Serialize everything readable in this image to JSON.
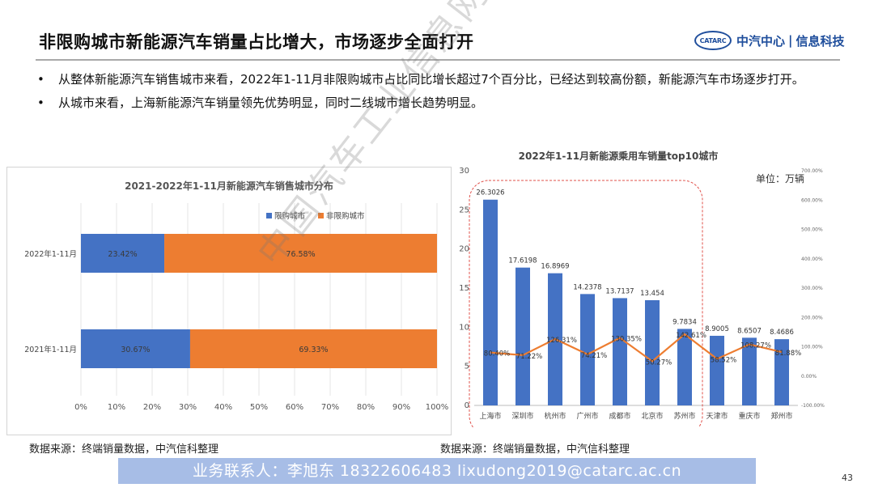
{
  "header": {
    "title": "非限购城市新能源汽车销量占比增大，市场逐步全面打开",
    "logo_mark": "CATARC",
    "logo_text_1": "中汽中心",
    "logo_sep": "|",
    "logo_text_2": "信息科技"
  },
  "bullets": [
    {
      "symbol": "•",
      "text": "从整体新能源汽车销售城市来看，2022年1-11月非限购城市占比同比增长超过7个百分比，已经达到较高份额，新能源汽车市场逐步打开。"
    },
    {
      "symbol": "•",
      "text": "从城市来看，上海新能源汽车销量领先优势明显，同时二线城市增长趋势明显。"
    }
  ],
  "chart_data": [
    {
      "type": "bar",
      "orientation": "horizontal-stacked-100",
      "title": "2021-2022年1-11月新能源汽车销售城市分布",
      "categories": [
        "2022年1-11月",
        "2021年1-11月"
      ],
      "series": [
        {
          "name": "限购城市",
          "color": "#4472c4",
          "values": [
            23.42,
            30.67
          ],
          "labels": [
            "23.42%",
            "30.67%"
          ]
        },
        {
          "name": "非限购城市",
          "color": "#ed7d31",
          "values": [
            76.58,
            69.33
          ],
          "labels": [
            "76.58%",
            "69.33%"
          ]
        }
      ],
      "xlim": [
        0,
        100
      ],
      "xticks": [
        "0%",
        "10%",
        "20%",
        "30%",
        "40%",
        "50%",
        "60%",
        "70%",
        "80%",
        "90%",
        "100%"
      ],
      "legend": "top-right",
      "grid": true
    },
    {
      "type": "bar",
      "title": "2022年1-11月新能源乘用车销量top10城市",
      "unit_label": "单位：万辆",
      "categories": [
        "上海市",
        "深圳市",
        "杭州市",
        "广州市",
        "成都市",
        "北京市",
        "苏州市",
        "天津市",
        "重庆市",
        "郑州市"
      ],
      "series": [
        {
          "kind": "bar",
          "color": "#4472c4",
          "axis": "left",
          "values": [
            26.3026,
            17.6198,
            16.8969,
            14.2378,
            13.7137,
            13.454,
            9.7834,
            8.9005,
            8.6507,
            8.4686
          ],
          "labels": [
            "26.3026",
            "17.6198",
            "16.8969",
            "14.2378",
            "13.7137",
            "13.454",
            "9.7834",
            "8.9005",
            "8.6507",
            "8.4686"
          ]
        },
        {
          "kind": "line",
          "color": "#ed7d31",
          "axis": "right",
          "values": [
            80.4,
            71.22,
            126.31,
            74.21,
            130.35,
            50.27,
            142.61,
            58.52,
            108.27,
            81.88
          ],
          "labels": [
            "80.40%",
            "71.22%",
            "126.31%",
            "74.21%",
            "130.35%",
            "50.27%",
            "142.61%",
            "58.52%",
            "108.27%",
            "81.88%"
          ]
        }
      ],
      "ylim": [
        0,
        30
      ],
      "yticks": [
        "0",
        "5",
        "10",
        "15",
        "20",
        "25",
        "30"
      ],
      "y2lim": [
        -100,
        700
      ],
      "y2ticks": [
        "-100.00%",
        "0.00%",
        "100.00%",
        "200.00%",
        "300.00%",
        "400.00%",
        "500.00%",
        "600.00%",
        "700.00%"
      ],
      "highlight_group": [
        "上海市",
        "深圳市",
        "杭州市",
        "广州市",
        "成都市",
        "北京市",
        "苏州市"
      ]
    }
  ],
  "sources": {
    "left": "数据来源：终端销量数据，中汽信科整理",
    "right": "数据来源：终端销量数据，中汽信科整理"
  },
  "contact": "业务联系人：李旭东  18322606483  lixudong2019@catarc.ac.cn",
  "page_number": "43",
  "watermark": "中国汽车工业信息网"
}
